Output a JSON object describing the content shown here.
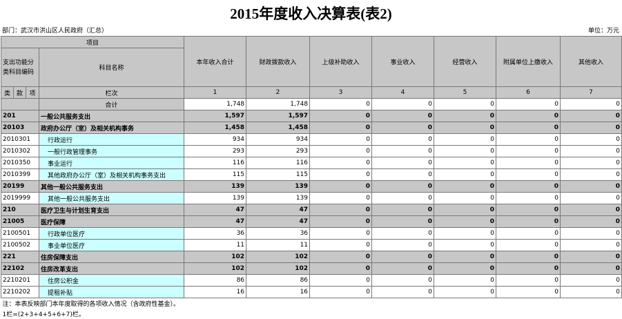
{
  "header": {
    "title": "2015年度收入决算表(表2)",
    "department": "部门：武汉市洪山区人民政府（汇总）",
    "unit": "单位：万元"
  },
  "table": {
    "project": "项目",
    "code_header": "支出功能分类科目编码",
    "name_header": "科目名称",
    "columns": [
      "本年收入合计",
      "财政拨款收入",
      "上级补助收入",
      "事业收入",
      "经营收入",
      "附属单位上缴收入",
      "其他收入"
    ],
    "levels": [
      "类",
      "款",
      "项"
    ],
    "column_no_label": "栏次",
    "column_numbers": [
      "1",
      "2",
      "3",
      "4",
      "5",
      "6",
      "7"
    ],
    "total": {
      "label": "合计",
      "values": [
        "1,748",
        "1,748",
        "0",
        "0",
        "0",
        "0",
        "0"
      ]
    },
    "rows": [
      {
        "code": "201",
        "name": "一般公共服务支出",
        "values": [
          "1,597",
          "1,597",
          "0",
          "0",
          "0",
          "0",
          "0"
        ]
      },
      {
        "code": "20103",
        "name": "政府办公厅（室）及相关机构事务",
        "values": [
          "1,458",
          "1,458",
          "0",
          "0",
          "0",
          "0",
          "0"
        ]
      },
      {
        "code": "2010301",
        "name": "行政运行",
        "values": [
          "934",
          "934",
          "0",
          "0",
          "0",
          "0",
          "0"
        ]
      },
      {
        "code": "2010302",
        "name": "一般行政管理事务",
        "values": [
          "293",
          "293",
          "0",
          "0",
          "0",
          "0",
          "0"
        ]
      },
      {
        "code": "2010350",
        "name": "事业运行",
        "values": [
          "116",
          "116",
          "0",
          "0",
          "0",
          "0",
          "0"
        ]
      },
      {
        "code": "2010399",
        "name": "其他政府办公厅（室）及相关机构事务支出",
        "values": [
          "115",
          "115",
          "0",
          "0",
          "0",
          "0",
          "0"
        ]
      },
      {
        "code": "20199",
        "name": "其他一般公共服务支出",
        "values": [
          "139",
          "139",
          "0",
          "0",
          "0",
          "0",
          "0"
        ]
      },
      {
        "code": "2019999",
        "name": "其他一般公共服务支出",
        "values": [
          "139",
          "139",
          "0",
          "0",
          "0",
          "0",
          "0"
        ]
      },
      {
        "code": "210",
        "name": "医疗卫生与计划生育支出",
        "values": [
          "47",
          "47",
          "0",
          "0",
          "0",
          "0",
          "0"
        ]
      },
      {
        "code": "21005",
        "name": "医疗保障",
        "values": [
          "47",
          "47",
          "0",
          "0",
          "0",
          "0",
          "0"
        ]
      },
      {
        "code": "2100501",
        "name": "行政单位医疗",
        "values": [
          "36",
          "36",
          "0",
          "0",
          "0",
          "0",
          "0"
        ]
      },
      {
        "code": "2100502",
        "name": "事业单位医疗",
        "values": [
          "11",
          "11",
          "0",
          "0",
          "0",
          "0",
          "0"
        ]
      },
      {
        "code": "221",
        "name": "住房保障支出",
        "values": [
          "102",
          "102",
          "0",
          "0",
          "0",
          "0",
          "0"
        ]
      },
      {
        "code": "22102",
        "name": "住房改革支出",
        "values": [
          "102",
          "102",
          "0",
          "0",
          "0",
          "0",
          "0"
        ]
      },
      {
        "code": "2210201",
        "name": "住房公积金",
        "values": [
          "86",
          "86",
          "0",
          "0",
          "0",
          "0",
          "0"
        ]
      },
      {
        "code": "2210202",
        "name": "提租补贴",
        "values": [
          "16",
          "16",
          "0",
          "0",
          "0",
          "0",
          "0"
        ]
      }
    ]
  },
  "notes": [
    "注：本表反映部门本年度取得的各项收入情况（含政府性基金）。",
    "1栏=(2+3+4+5+6+7)栏。"
  ]
}
